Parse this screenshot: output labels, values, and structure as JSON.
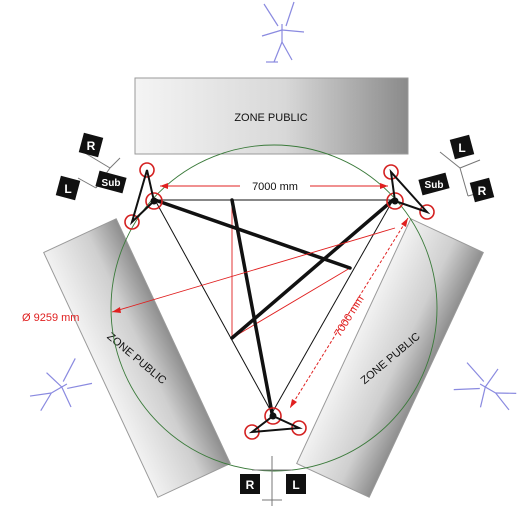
{
  "zones": {
    "top": "ZONE PUBLIC",
    "left": "ZONE PUBLIC",
    "right": "ZONE PUBLIC"
  },
  "dimensions": {
    "horizontal": "7000 mm",
    "diagonal": "7000 mm",
    "diameter": "Ø 9259 mm"
  },
  "speakers": {
    "top_left": {
      "top_label": "R",
      "bottom_label": "L",
      "sub_label": "Sub"
    },
    "top_right": {
      "top_label": "L",
      "bottom_label": "R",
      "sub_label": "Sub"
    },
    "bottom": {
      "left_label": "R",
      "right_label": "L"
    }
  },
  "colors": {
    "dimension_red": "#e02020",
    "circle_green": "#3a7a3a",
    "listener_blue": "#8a8ae0",
    "zone_gradient_light": "#f2f2f2",
    "zone_gradient_dark": "#8c8c8c",
    "structure_black": "#111111"
  },
  "icons": [
    "listener-figure-icon"
  ]
}
